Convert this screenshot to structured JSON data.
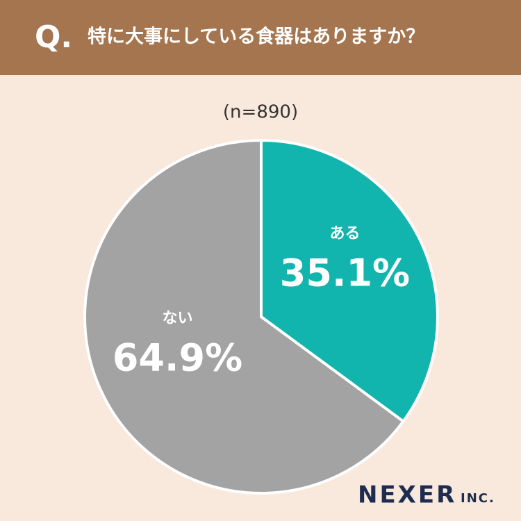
{
  "chart_data": {
    "type": "pie",
    "question_mark": "Q.",
    "title": "特に大事にしている食器はありますか？",
    "subtitle": "(n=890)",
    "categories": [
      "ある",
      "ない"
    ],
    "values": [
      35.1,
      64.9
    ],
    "value_labels": [
      "35.1%",
      "64.9%"
    ],
    "colors": [
      "#12b5ad",
      "#a3a3a3"
    ],
    "logo": "NEXER",
    "logo_suffix": "INC."
  }
}
